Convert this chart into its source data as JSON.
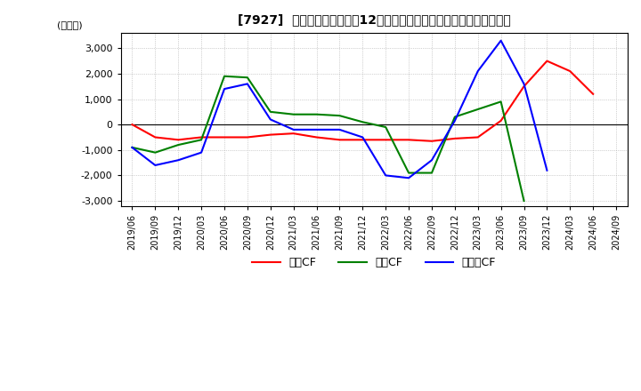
{
  "title": "[7927]  キャッシュフローの12か月移動合計の対前年同期増減額の推移",
  "ylabel": "(百万円)",
  "ylim": [
    -3200,
    3600
  ],
  "yticks": [
    -3000,
    -2000,
    -1000,
    0,
    1000,
    2000,
    3000
  ],
  "legend_labels": [
    "営業CF",
    "投資CF",
    "フリーCF"
  ],
  "colors": [
    "#ff0000",
    "#008000",
    "#0000ff"
  ],
  "x_labels": [
    "2019/06",
    "2019/09",
    "2019/12",
    "2020/03",
    "2020/06",
    "2020/09",
    "2020/12",
    "2021/03",
    "2021/06",
    "2021/09",
    "2021/12",
    "2022/03",
    "2022/06",
    "2022/09",
    "2022/12",
    "2023/03",
    "2023/06",
    "2023/09",
    "2023/12",
    "2024/03",
    "2024/06",
    "2024/09"
  ],
  "eigyo_cf": [
    0,
    -500,
    -600,
    -500,
    -500,
    -500,
    -400,
    -350,
    -500,
    -600,
    -600,
    -600,
    -600,
    -650,
    -550,
    -500,
    150,
    1500,
    2500,
    2100,
    1200,
    null
  ],
  "toushi_cf": [
    -900,
    -1100,
    -800,
    -600,
    1900,
    1850,
    500,
    400,
    400,
    350,
    100,
    -100,
    -1900,
    -1900,
    300,
    600,
    900,
    -3000,
    null,
    null,
    null,
    null
  ],
  "free_cf": [
    -900,
    -1600,
    -1400,
    -1100,
    1400,
    1600,
    200,
    -200,
    -200,
    -200,
    -500,
    -2000,
    -2100,
    -1400,
    150,
    2100,
    3300,
    1600,
    -1800,
    null,
    null,
    null
  ]
}
